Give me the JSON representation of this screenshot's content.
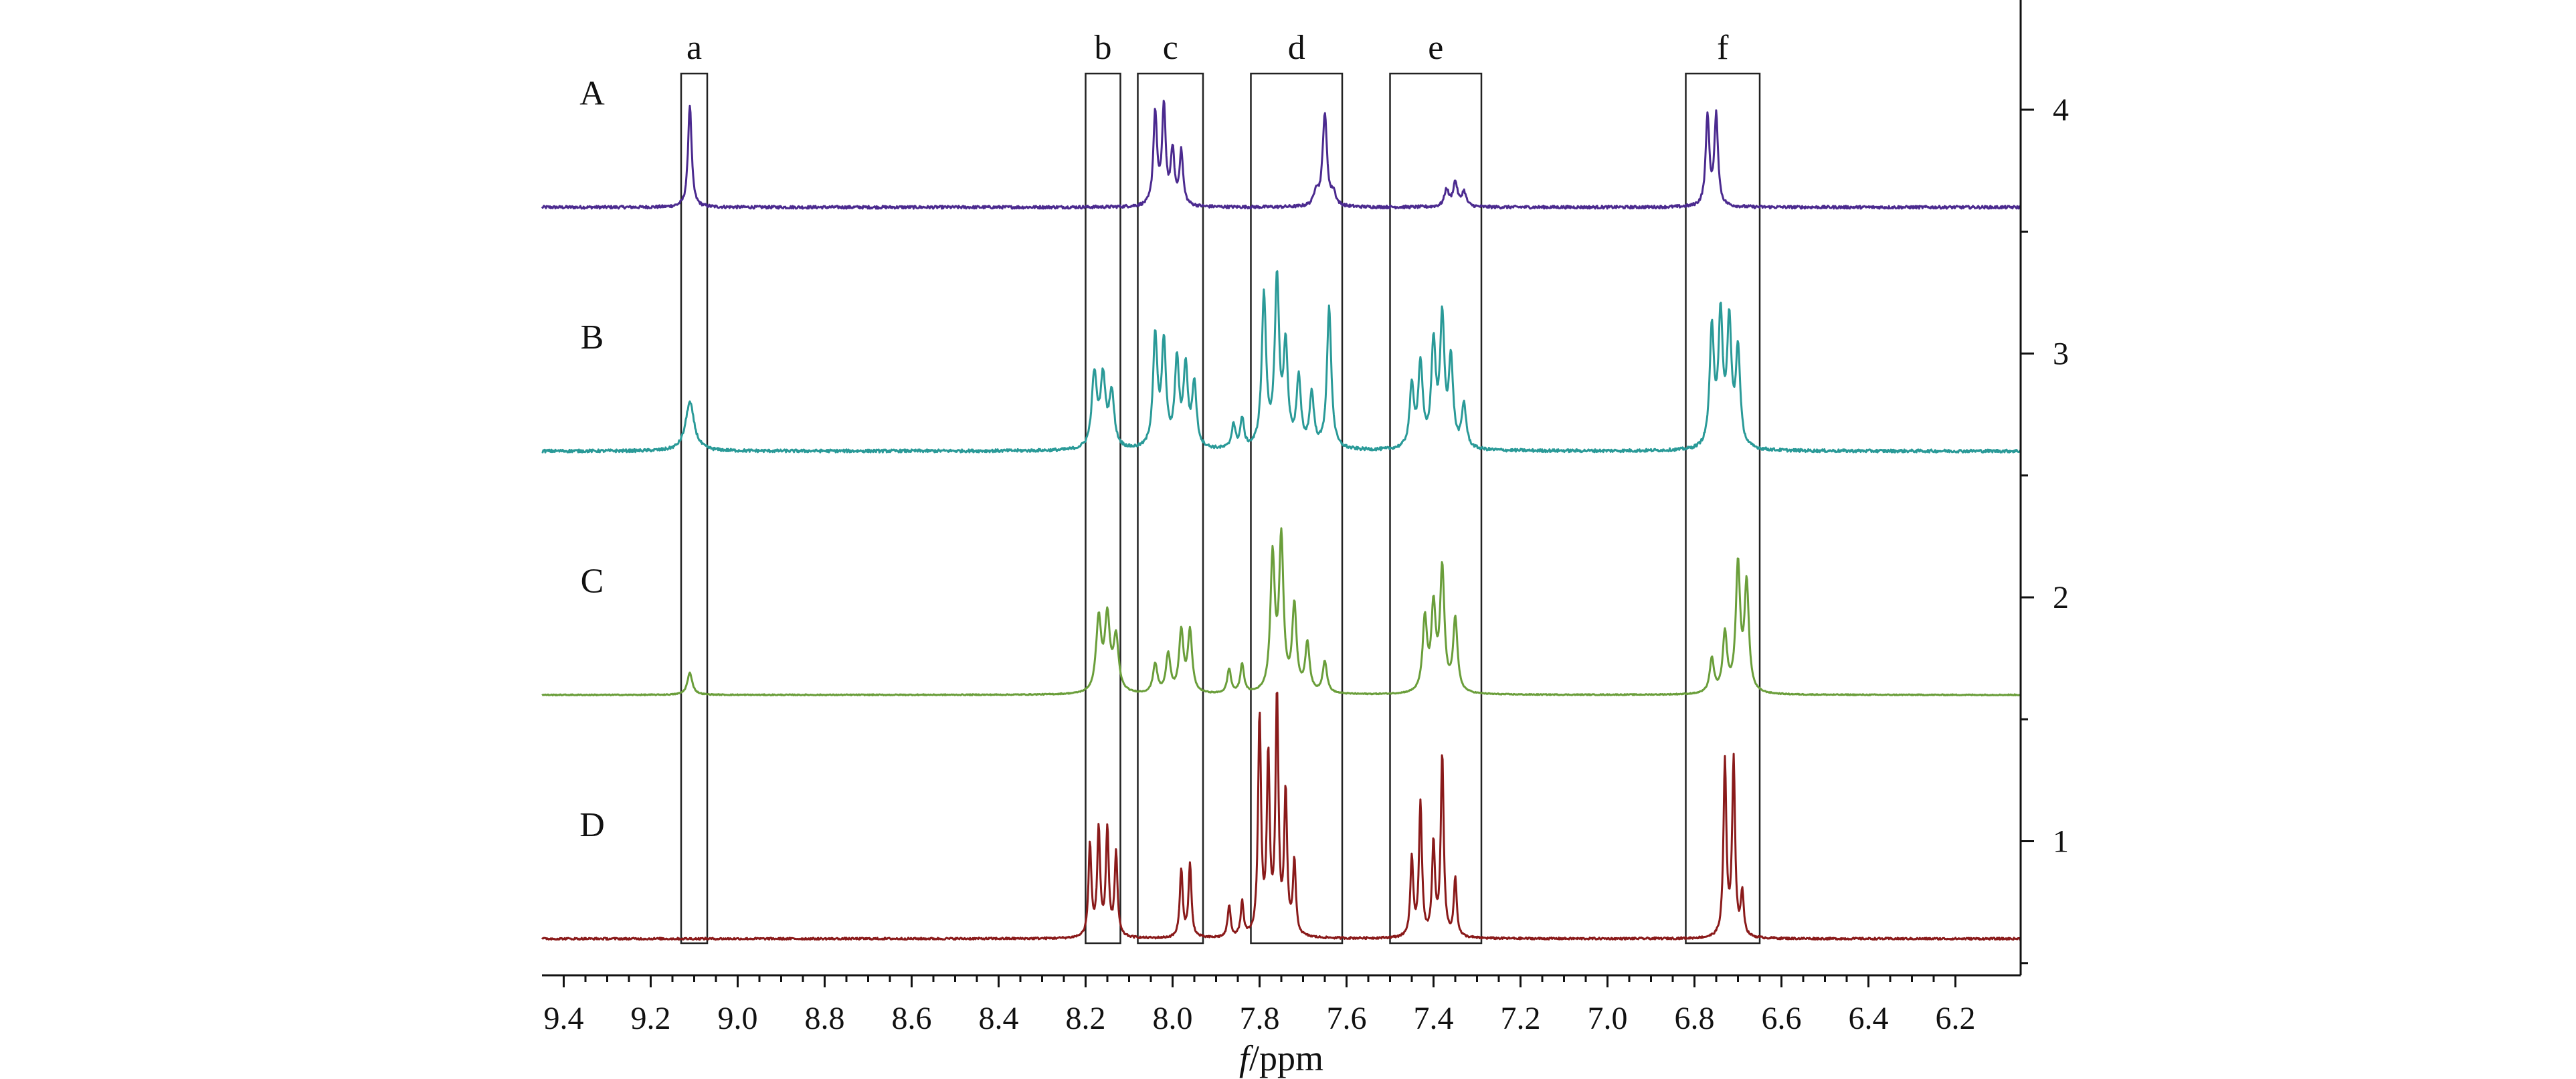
{
  "chart_data": {
    "type": "line",
    "title": "",
    "x_axis": {
      "label_italic": "f",
      "label_rest": "/ppm",
      "range": [
        9.45,
        6.05
      ],
      "reversed": true,
      "tick_labels": [
        "9.4",
        "9.2",
        "9.0",
        "8.8",
        "8.6",
        "8.4",
        "8.2",
        "8.0",
        "7.8",
        "7.6",
        "7.4",
        "7.2",
        "7.0",
        "6.8",
        "6.6",
        "6.4",
        "6.2"
      ]
    },
    "y_axis": {
      "position": "right",
      "range": [
        0.45,
        4.45
      ],
      "tick_labels": [
        "1",
        "2",
        "3",
        "4"
      ]
    },
    "grid": false,
    "regions": [
      {
        "label": "a",
        "range": [
          9.13,
          9.07
        ]
      },
      {
        "label": "b",
        "range": [
          8.2,
          8.12
        ]
      },
      {
        "label": "c",
        "range": [
          8.08,
          7.93
        ]
      },
      {
        "label": "d",
        "range": [
          7.82,
          7.61
        ]
      },
      {
        "label": "e",
        "range": [
          7.5,
          7.29
        ]
      },
      {
        "label": "f",
        "range": [
          6.82,
          6.65
        ]
      }
    ],
    "series": [
      {
        "name": "A",
        "color": "#4b2a8f",
        "baseline": 3.6,
        "noise": 0.006,
        "peaks": [
          [
            9.11,
            0.42,
            0.005
          ],
          [
            8.04,
            0.38,
            0.005
          ],
          [
            8.02,
            0.4,
            0.005
          ],
          [
            8.0,
            0.22,
            0.005
          ],
          [
            7.98,
            0.22,
            0.005
          ],
          [
            7.67,
            0.06,
            0.006
          ],
          [
            7.65,
            0.38,
            0.006
          ],
          [
            7.63,
            0.05,
            0.006
          ],
          [
            7.37,
            0.07,
            0.006
          ],
          [
            7.35,
            0.1,
            0.006
          ],
          [
            7.33,
            0.06,
            0.006
          ],
          [
            6.77,
            0.37,
            0.005
          ],
          [
            6.75,
            0.37,
            0.005
          ]
        ]
      },
      {
        "name": "B",
        "color": "#2a9a98",
        "baseline": 2.6,
        "noise": 0.006,
        "peaks": [
          [
            9.11,
            0.2,
            0.012
          ],
          [
            8.18,
            0.3,
            0.007
          ],
          [
            8.16,
            0.28,
            0.007
          ],
          [
            8.14,
            0.22,
            0.007
          ],
          [
            8.04,
            0.45,
            0.006
          ],
          [
            8.02,
            0.42,
            0.006
          ],
          [
            7.99,
            0.35,
            0.006
          ],
          [
            7.97,
            0.32,
            0.006
          ],
          [
            7.95,
            0.26,
            0.006
          ],
          [
            7.86,
            0.1,
            0.005
          ],
          [
            7.84,
            0.12,
            0.005
          ],
          [
            7.79,
            0.62,
            0.006
          ],
          [
            7.76,
            0.68,
            0.006
          ],
          [
            7.74,
            0.4,
            0.006
          ],
          [
            7.71,
            0.28,
            0.006
          ],
          [
            7.68,
            0.22,
            0.006
          ],
          [
            7.64,
            0.58,
            0.006
          ],
          [
            7.45,
            0.25,
            0.006
          ],
          [
            7.43,
            0.34,
            0.006
          ],
          [
            7.4,
            0.42,
            0.006
          ],
          [
            7.38,
            0.52,
            0.006
          ],
          [
            7.36,
            0.35,
            0.006
          ],
          [
            7.33,
            0.18,
            0.006
          ],
          [
            6.76,
            0.48,
            0.006
          ],
          [
            6.74,
            0.52,
            0.006
          ],
          [
            6.72,
            0.5,
            0.006
          ],
          [
            6.7,
            0.4,
            0.006
          ]
        ]
      },
      {
        "name": "C",
        "color": "#6a9e3a",
        "baseline": 1.6,
        "noise": 0.002,
        "peaks": [
          [
            9.11,
            0.09,
            0.007
          ],
          [
            8.17,
            0.3,
            0.007
          ],
          [
            8.15,
            0.3,
            0.007
          ],
          [
            8.13,
            0.22,
            0.007
          ],
          [
            8.04,
            0.12,
            0.006
          ],
          [
            8.01,
            0.16,
            0.006
          ],
          [
            7.98,
            0.25,
            0.006
          ],
          [
            7.96,
            0.25,
            0.006
          ],
          [
            7.87,
            0.1,
            0.005
          ],
          [
            7.84,
            0.12,
            0.005
          ],
          [
            7.77,
            0.55,
            0.006
          ],
          [
            7.75,
            0.62,
            0.006
          ],
          [
            7.72,
            0.35,
            0.006
          ],
          [
            7.69,
            0.2,
            0.006
          ],
          [
            7.65,
            0.13,
            0.006
          ],
          [
            7.42,
            0.3,
            0.006
          ],
          [
            7.4,
            0.34,
            0.006
          ],
          [
            7.38,
            0.5,
            0.006
          ],
          [
            7.35,
            0.3,
            0.006
          ],
          [
            6.76,
            0.14,
            0.006
          ],
          [
            6.73,
            0.24,
            0.006
          ],
          [
            6.7,
            0.52,
            0.006
          ],
          [
            6.68,
            0.44,
            0.006
          ]
        ]
      },
      {
        "name": "D",
        "color": "#8a1a1a",
        "baseline": 0.6,
        "noise": 0.004,
        "peaks": [
          [
            8.19,
            0.38,
            0.004
          ],
          [
            8.17,
            0.44,
            0.004
          ],
          [
            8.15,
            0.44,
            0.004
          ],
          [
            8.13,
            0.34,
            0.004
          ],
          [
            7.98,
            0.28,
            0.004
          ],
          [
            7.96,
            0.3,
            0.004
          ],
          [
            7.87,
            0.13,
            0.004
          ],
          [
            7.84,
            0.14,
            0.004
          ],
          [
            7.8,
            0.9,
            0.004
          ],
          [
            7.78,
            0.72,
            0.004
          ],
          [
            7.76,
            0.98,
            0.004
          ],
          [
            7.74,
            0.58,
            0.004
          ],
          [
            7.72,
            0.3,
            0.004
          ],
          [
            7.45,
            0.32,
            0.004
          ],
          [
            7.43,
            0.55,
            0.004
          ],
          [
            7.4,
            0.38,
            0.004
          ],
          [
            7.38,
            0.75,
            0.004
          ],
          [
            7.35,
            0.24,
            0.004
          ],
          [
            6.73,
            0.72,
            0.004
          ],
          [
            6.71,
            0.72,
            0.004
          ],
          [
            6.69,
            0.18,
            0.004
          ]
        ]
      }
    ]
  }
}
